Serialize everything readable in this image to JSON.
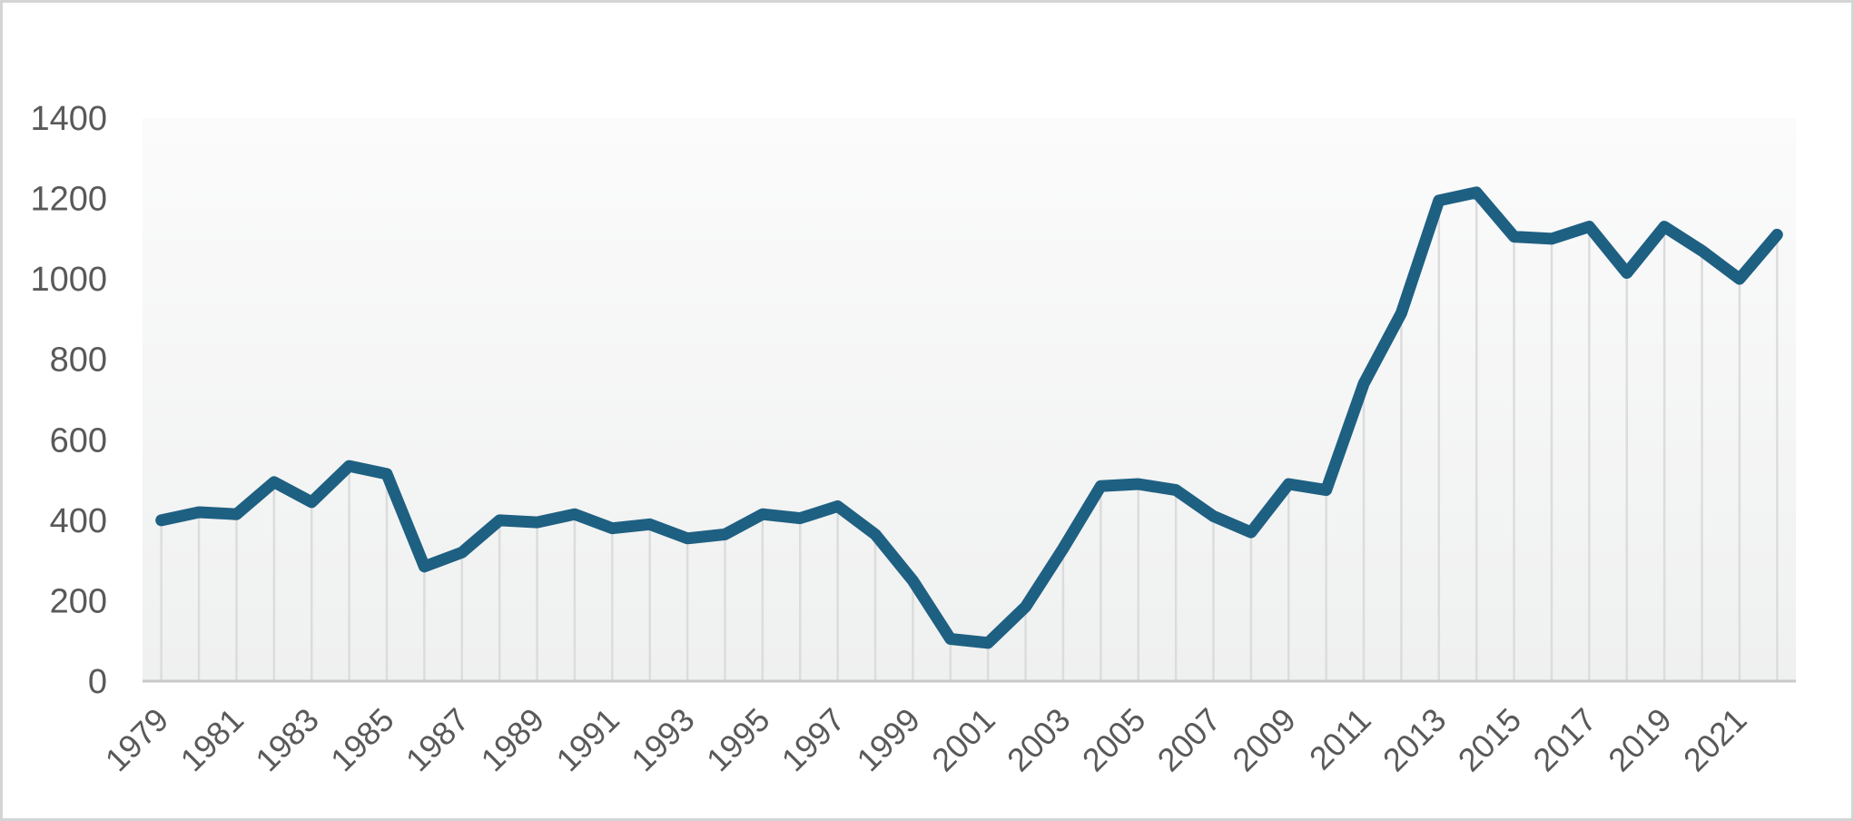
{
  "chart_data": {
    "type": "line",
    "title": "",
    "xlabel": "",
    "ylabel": "",
    "categories": [
      1979,
      1980,
      1981,
      1982,
      1983,
      1984,
      1985,
      1986,
      1987,
      1988,
      1989,
      1990,
      1991,
      1992,
      1993,
      1994,
      1995,
      1996,
      1997,
      1998,
      1999,
      2000,
      2001,
      2002,
      2003,
      2004,
      2005,
      2006,
      2007,
      2008,
      2009,
      2010,
      2011,
      2012,
      2013,
      2014,
      2015,
      2016,
      2017,
      2018,
      2019,
      2020,
      2021,
      2022
    ],
    "values": [
      400,
      420,
      415,
      495,
      445,
      535,
      515,
      285,
      320,
      400,
      395,
      415,
      380,
      390,
      355,
      365,
      415,
      405,
      435,
      365,
      250,
      105,
      95,
      185,
      330,
      485,
      490,
      475,
      410,
      370,
      490,
      475,
      740,
      915,
      1195,
      1215,
      1105,
      1100,
      1130,
      1015,
      1130,
      1070,
      1000,
      1110
    ],
    "ylim": [
      0,
      1400
    ],
    "y_ticks": [
      0,
      200,
      400,
      600,
      800,
      1000,
      1200,
      1400
    ],
    "x_tick_labels": [
      "1979",
      "1981",
      "1983",
      "1985",
      "1987",
      "1989",
      "1991",
      "1993",
      "1995",
      "1997",
      "1999",
      "2001",
      "2003",
      "2005",
      "2007",
      "2009",
      "2011",
      "2013",
      "2015",
      "2017",
      "2019",
      "2021"
    ],
    "x_tick_rotation_deg": 45,
    "legend": "none",
    "grid": "vertical-drop-lines-per-point",
    "line_color": "#1e6082",
    "drop_line_color": "#dcdcdc",
    "axis_line_color": "#c9c9c9",
    "tick_label_color": "#595959",
    "plot_bg_top": "#fbfbfb",
    "plot_bg_bottom": "#eff0f0",
    "outer_border_color": "#d4d4d4"
  }
}
